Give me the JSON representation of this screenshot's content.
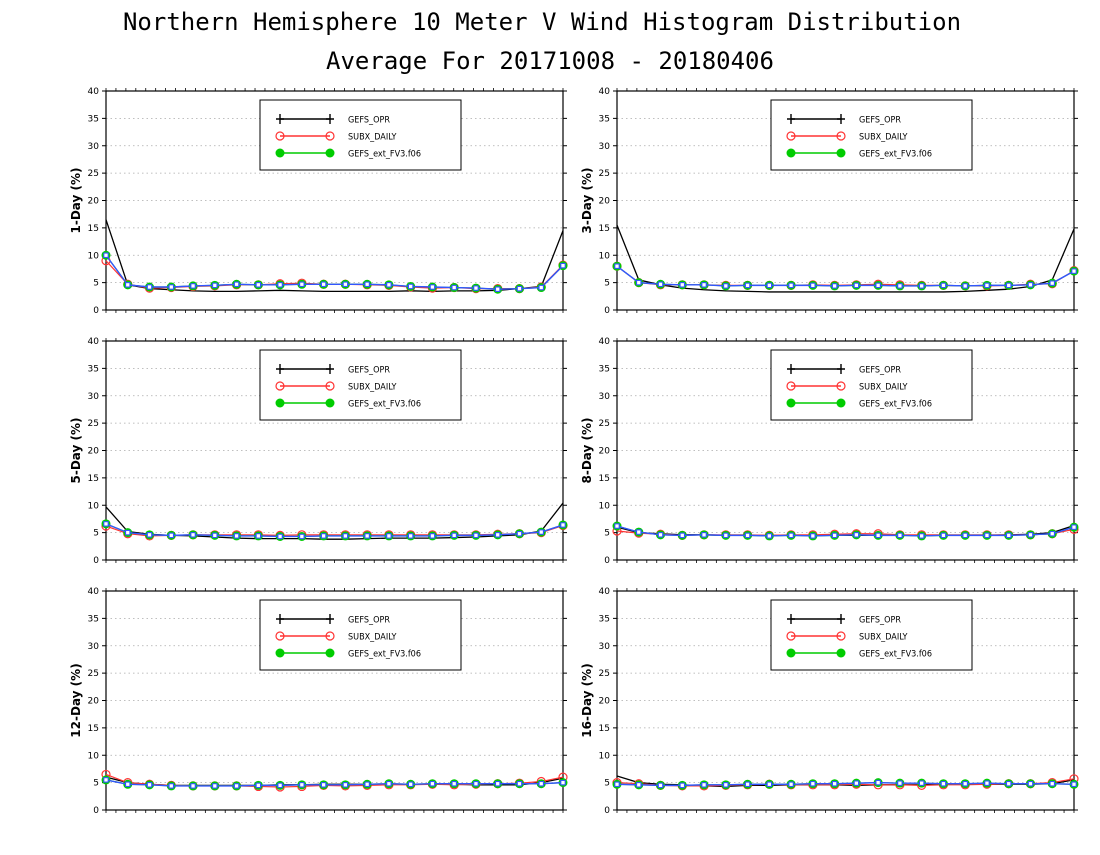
{
  "title": "Northern Hemisphere 10 Meter V Wind Histogram Distribution",
  "subtitle": "Average For 20171008 - 20180406",
  "colors": {
    "GEFS_OPR": "#000000",
    "SUBX_DAILY": "#ff3333",
    "GEFS_ext_FV3.f06": "#00cc00",
    "overlay_blue": "#3355ff",
    "grid": "#aaaaaa"
  },
  "chart_data": [
    {
      "type": "line",
      "ylabel": "1-Day (%)",
      "ylim": [
        0,
        40
      ],
      "yticks": [
        "0",
        "5",
        "10",
        "15",
        "20",
        "25",
        "30",
        "35",
        "40"
      ],
      "grid": true,
      "legend_position": "top-center",
      "x": [
        1,
        2,
        3,
        4,
        5,
        6,
        7,
        8,
        9,
        10,
        11,
        12,
        13,
        14,
        15,
        16,
        17,
        18,
        19,
        20,
        21,
        22
      ],
      "series": [
        {
          "name": "GEFS_OPR",
          "marker": "plus",
          "values": [
            16.5,
            4.6,
            3.9,
            3.7,
            3.5,
            3.4,
            3.4,
            3.5,
            3.6,
            3.5,
            3.4,
            3.4,
            3.4,
            3.4,
            3.5,
            3.4,
            3.5,
            3.5,
            3.6,
            3.9,
            4.3,
            14.5
          ]
        },
        {
          "name": "SUBX_DAILY",
          "marker": "open-circle",
          "values": [
            9.0,
            4.7,
            4.0,
            4.1,
            4.3,
            4.4,
            4.6,
            4.6,
            4.8,
            4.9,
            4.7,
            4.7,
            4.6,
            4.5,
            4.2,
            4.0,
            4.1,
            3.9,
            3.9,
            3.9,
            4.2,
            8.2
          ]
        },
        {
          "name": "GEFS_ext_FV3.f06",
          "marker": "filled-circle",
          "values": [
            10.0,
            4.6,
            4.2,
            4.2,
            4.4,
            4.5,
            4.7,
            4.6,
            4.6,
            4.7,
            4.7,
            4.7,
            4.7,
            4.6,
            4.3,
            4.2,
            4.1,
            4.0,
            3.8,
            3.9,
            4.1,
            8.1
          ]
        }
      ]
    },
    {
      "type": "line",
      "ylabel": "3-Day (%)",
      "ylim": [
        0,
        40
      ],
      "yticks": [
        "0",
        "5",
        "10",
        "15",
        "20",
        "25",
        "30",
        "35",
        "40"
      ],
      "grid": true,
      "legend_position": "top-center",
      "x": [
        1,
        2,
        3,
        4,
        5,
        6,
        7,
        8,
        9,
        10,
        11,
        12,
        13,
        14,
        15,
        16,
        17,
        18,
        19,
        20,
        21,
        22
      ],
      "series": [
        {
          "name": "GEFS_OPR",
          "marker": "plus",
          "values": [
            15.5,
            5.5,
            4.6,
            4.0,
            3.7,
            3.5,
            3.4,
            3.3,
            3.3,
            3.3,
            3.3,
            3.3,
            3.3,
            3.3,
            3.3,
            3.3,
            3.4,
            3.6,
            3.8,
            4.3,
            5.5,
            14.8
          ]
        },
        {
          "name": "SUBX_DAILY",
          "marker": "open-circle",
          "values": [
            8.0,
            5.0,
            4.6,
            4.6,
            4.6,
            4.5,
            4.5,
            4.5,
            4.5,
            4.6,
            4.5,
            4.6,
            4.7,
            4.6,
            4.5,
            4.5,
            4.4,
            4.4,
            4.5,
            4.7,
            4.8,
            7.2
          ]
        },
        {
          "name": "GEFS_ext_FV3.f06",
          "marker": "filled-circle",
          "values": [
            8.0,
            5.0,
            4.7,
            4.6,
            4.6,
            4.4,
            4.5,
            4.5,
            4.5,
            4.5,
            4.4,
            4.5,
            4.5,
            4.4,
            4.4,
            4.5,
            4.4,
            4.5,
            4.5,
            4.6,
            4.9,
            7.1
          ]
        }
      ]
    },
    {
      "type": "line",
      "ylabel": "5-Day (%)",
      "ylim": [
        0,
        40
      ],
      "yticks": [
        "0",
        "5",
        "10",
        "15",
        "20",
        "25",
        "30",
        "35",
        "40"
      ],
      "grid": true,
      "legend_position": "top-center",
      "x": [
        1,
        2,
        3,
        4,
        5,
        6,
        7,
        8,
        9,
        10,
        11,
        12,
        13,
        14,
        15,
        16,
        17,
        18,
        19,
        20,
        21,
        22
      ],
      "series": [
        {
          "name": "GEFS_OPR",
          "marker": "plus",
          "values": [
            9.7,
            5.2,
            4.7,
            4.5,
            4.4,
            4.2,
            4.0,
            3.9,
            3.9,
            3.9,
            3.8,
            3.8,
            3.9,
            4.0,
            4.0,
            4.0,
            4.1,
            4.2,
            4.4,
            4.6,
            5.3,
            10.4
          ]
        },
        {
          "name": "SUBX_DAILY",
          "marker": "open-circle",
          "values": [
            6.2,
            4.8,
            4.4,
            4.5,
            4.6,
            4.6,
            4.6,
            4.6,
            4.5,
            4.6,
            4.6,
            4.6,
            4.6,
            4.6,
            4.6,
            4.6,
            4.6,
            4.6,
            4.7,
            4.8,
            5.0,
            6.3
          ]
        },
        {
          "name": "GEFS_ext_FV3.f06",
          "marker": "filled-circle",
          "values": [
            6.6,
            5.0,
            4.6,
            4.5,
            4.6,
            4.5,
            4.4,
            4.4,
            4.3,
            4.3,
            4.4,
            4.4,
            4.4,
            4.4,
            4.4,
            4.4,
            4.5,
            4.5,
            4.6,
            4.8,
            5.1,
            6.4
          ]
        }
      ]
    },
    {
      "type": "line",
      "ylabel": "8-Day (%)",
      "ylim": [
        0,
        40
      ],
      "yticks": [
        "0",
        "5",
        "10",
        "15",
        "20",
        "25",
        "30",
        "35",
        "40"
      ],
      "grid": true,
      "legend_position": "top-center",
      "x": [
        1,
        2,
        3,
        4,
        5,
        6,
        7,
        8,
        9,
        10,
        11,
        12,
        13,
        14,
        15,
        16,
        17,
        18,
        19,
        20,
        21,
        22
      ],
      "series": [
        {
          "name": "GEFS_OPR",
          "marker": "plus",
          "values": [
            6.0,
            5.0,
            4.8,
            4.6,
            4.6,
            4.5,
            4.5,
            4.5,
            4.5,
            4.5,
            4.5,
            4.5,
            4.5,
            4.5,
            4.5,
            4.5,
            4.5,
            4.5,
            4.6,
            4.7,
            5.0,
            6.3
          ]
        },
        {
          "name": "SUBX_DAILY",
          "marker": "open-circle",
          "values": [
            5.3,
            4.9,
            4.7,
            4.5,
            4.6,
            4.6,
            4.6,
            4.5,
            4.6,
            4.6,
            4.7,
            4.8,
            4.8,
            4.6,
            4.6,
            4.6,
            4.6,
            4.6,
            4.6,
            4.6,
            4.8,
            5.6
          ]
        },
        {
          "name": "GEFS_ext_FV3.f06",
          "marker": "filled-circle",
          "values": [
            6.2,
            5.1,
            4.6,
            4.5,
            4.6,
            4.5,
            4.5,
            4.4,
            4.5,
            4.4,
            4.5,
            4.6,
            4.5,
            4.5,
            4.4,
            4.5,
            4.5,
            4.5,
            4.5,
            4.6,
            4.8,
            6.0
          ]
        }
      ]
    },
    {
      "type": "line",
      "ylabel": "12-Day (%)",
      "ylim": [
        0,
        40
      ],
      "yticks": [
        "0",
        "5",
        "10",
        "15",
        "20",
        "25",
        "30",
        "35",
        "40"
      ],
      "grid": true,
      "legend_position": "top-center",
      "x": [
        1,
        2,
        3,
        4,
        5,
        6,
        7,
        8,
        9,
        10,
        11,
        12,
        13,
        14,
        15,
        16,
        17,
        18,
        19,
        20,
        21,
        22
      ],
      "series": [
        {
          "name": "GEFS_OPR",
          "marker": "plus",
          "values": [
            6.0,
            5.0,
            4.7,
            4.5,
            4.5,
            4.5,
            4.5,
            4.5,
            4.6,
            4.6,
            4.7,
            4.7,
            4.7,
            4.7,
            4.7,
            4.7,
            4.7,
            4.6,
            4.6,
            4.6,
            5.0,
            5.8
          ]
        },
        {
          "name": "SUBX_DAILY",
          "marker": "open-circle",
          "values": [
            6.5,
            5.0,
            4.7,
            4.5,
            4.4,
            4.4,
            4.4,
            4.3,
            4.2,
            4.3,
            4.5,
            4.4,
            4.5,
            4.6,
            4.6,
            4.7,
            4.6,
            4.7,
            4.8,
            4.9,
            5.2,
            6.0
          ]
        },
        {
          "name": "GEFS_ext_FV3.f06",
          "marker": "filled-circle",
          "values": [
            5.5,
            4.7,
            4.6,
            4.4,
            4.4,
            4.4,
            4.4,
            4.5,
            4.5,
            4.6,
            4.6,
            4.6,
            4.7,
            4.8,
            4.7,
            4.8,
            4.8,
            4.8,
            4.8,
            4.8,
            4.8,
            5.0
          ]
        }
      ]
    },
    {
      "type": "line",
      "ylabel": "16-Day (%)",
      "ylim": [
        0,
        40
      ],
      "yticks": [
        "0",
        "5",
        "10",
        "15",
        "20",
        "25",
        "30",
        "35",
        "40"
      ],
      "grid": true,
      "legend_position": "top-center",
      "x": [
        1,
        2,
        3,
        4,
        5,
        6,
        7,
        8,
        9,
        10,
        11,
        12,
        13,
        14,
        15,
        16,
        17,
        18,
        19,
        20,
        21,
        22
      ],
      "series": [
        {
          "name": "GEFS_OPR",
          "marker": "plus",
          "values": [
            6.2,
            5.0,
            4.7,
            4.6,
            4.4,
            4.3,
            4.5,
            4.5,
            4.6,
            4.6,
            4.6,
            4.5,
            4.6,
            4.6,
            4.6,
            4.7,
            4.7,
            4.7,
            4.7,
            4.7,
            4.8,
            5.5
          ]
        },
        {
          "name": "SUBX_DAILY",
          "marker": "open-circle",
          "values": [
            5.0,
            4.8,
            4.5,
            4.4,
            4.4,
            4.5,
            4.6,
            4.7,
            4.6,
            4.6,
            4.6,
            4.7,
            4.6,
            4.6,
            4.5,
            4.6,
            4.6,
            4.7,
            4.8,
            4.8,
            5.0,
            5.7
          ]
        },
        {
          "name": "GEFS_ext_FV3.f06",
          "marker": "filled-circle",
          "values": [
            4.7,
            4.6,
            4.5,
            4.5,
            4.6,
            4.6,
            4.7,
            4.7,
            4.7,
            4.8,
            4.8,
            4.9,
            5.0,
            4.9,
            4.9,
            4.8,
            4.8,
            4.9,
            4.8,
            4.8,
            4.8,
            4.7
          ]
        }
      ]
    }
  ]
}
